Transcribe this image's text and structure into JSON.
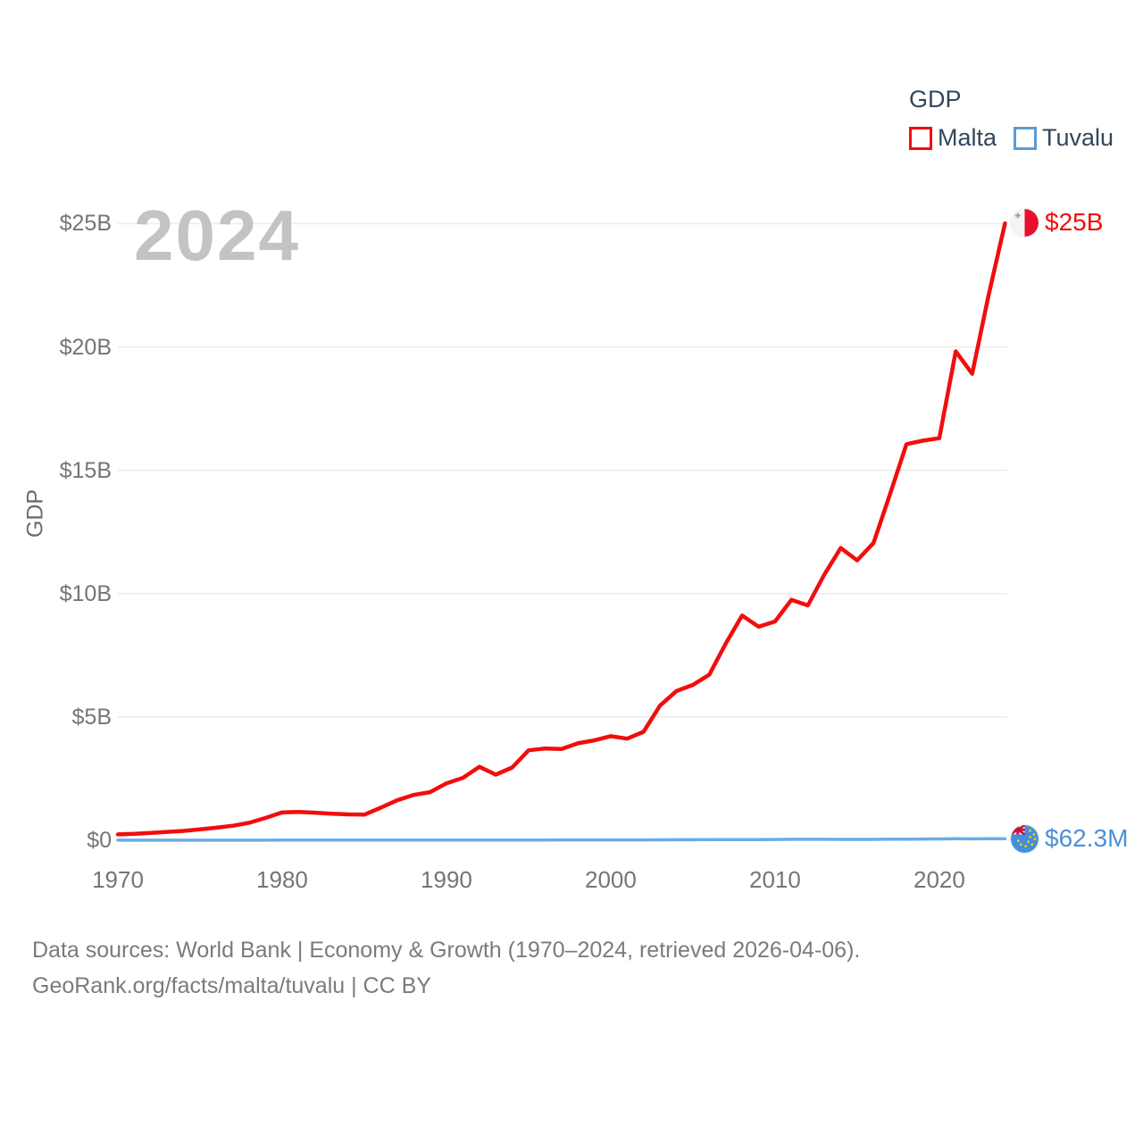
{
  "legend": {
    "title": "GDP",
    "items": [
      {
        "label": "Malta",
        "color": "#f20d0d"
      },
      {
        "label": "Tuvalu",
        "color": "#5b9bd5"
      }
    ]
  },
  "watermark": "2024",
  "y_axis": {
    "label": "GDP",
    "ticks": [
      "$0",
      "$5B",
      "$10B",
      "$15B",
      "$20B",
      "$25B"
    ]
  },
  "x_axis": {
    "ticks": [
      "1970",
      "1980",
      "1990",
      "2000",
      "2010",
      "2020"
    ]
  },
  "end_labels": {
    "malta": {
      "value": "$25B",
      "color": "#f20d0d"
    },
    "tuvalu": {
      "value": "$62.3M",
      "color": "#4a90d9"
    }
  },
  "footer": {
    "line1": "Data sources: World Bank | Economy & Growth (1970–2024, retrieved 2026-04-06).",
    "line2": "GeoRank.org/facts/malta/tuvalu | CC BY"
  },
  "chart_data": {
    "type": "line",
    "title": "GDP",
    "ylabel": "GDP",
    "xlabel": "",
    "xlim": [
      1970,
      2024
    ],
    "ylim": [
      0,
      25
    ],
    "grid": "horizontal",
    "legend_position": "top-right",
    "unit": "USD billions",
    "x": [
      1970,
      1971,
      1972,
      1973,
      1974,
      1975,
      1976,
      1977,
      1978,
      1979,
      1980,
      1981,
      1982,
      1983,
      1984,
      1985,
      1986,
      1987,
      1988,
      1989,
      1990,
      1991,
      1992,
      1993,
      1994,
      1995,
      1996,
      1997,
      1998,
      1999,
      2000,
      2001,
      2002,
      2003,
      2004,
      2005,
      2006,
      2007,
      2008,
      2009,
      2010,
      2011,
      2012,
      2013,
      2014,
      2015,
      2016,
      2017,
      2018,
      2019,
      2020,
      2021,
      2022,
      2023,
      2024
    ],
    "series": [
      {
        "name": "Malta",
        "color": "#f20d0d",
        "end_label": "$25B",
        "values": [
          0.24,
          0.26,
          0.3,
          0.34,
          0.38,
          0.44,
          0.51,
          0.59,
          0.71,
          0.91,
          1.13,
          1.15,
          1.12,
          1.08,
          1.05,
          1.04,
          1.32,
          1.62,
          1.84,
          1.95,
          2.31,
          2.53,
          2.98,
          2.66,
          2.95,
          3.65,
          3.72,
          3.7,
          3.93,
          4.05,
          4.22,
          4.12,
          4.4,
          5.46,
          6.05,
          6.3,
          6.71,
          7.97,
          9.11,
          8.66,
          8.87,
          9.75,
          9.52,
          10.77,
          11.85,
          11.35,
          12.06,
          14.03,
          16.06,
          16.2,
          16.3,
          19.82,
          18.91,
          22.1,
          25.01
        ]
      },
      {
        "name": "Tuvalu",
        "color": "#6aace8",
        "end_label": "$62.3M",
        "values": [
          0.002,
          0.002,
          0.002,
          0.003,
          0.003,
          0.003,
          0.004,
          0.004,
          0.005,
          0.005,
          0.006,
          0.006,
          0.007,
          0.007,
          0.008,
          0.008,
          0.008,
          0.009,
          0.009,
          0.009,
          0.009,
          0.01,
          0.01,
          0.01,
          0.011,
          0.011,
          0.012,
          0.013,
          0.013,
          0.013,
          0.014,
          0.015,
          0.016,
          0.018,
          0.02,
          0.022,
          0.024,
          0.027,
          0.03,
          0.029,
          0.032,
          0.039,
          0.04,
          0.039,
          0.038,
          0.035,
          0.038,
          0.043,
          0.048,
          0.052,
          0.055,
          0.06,
          0.059,
          0.062,
          0.0623
        ]
      }
    ]
  }
}
